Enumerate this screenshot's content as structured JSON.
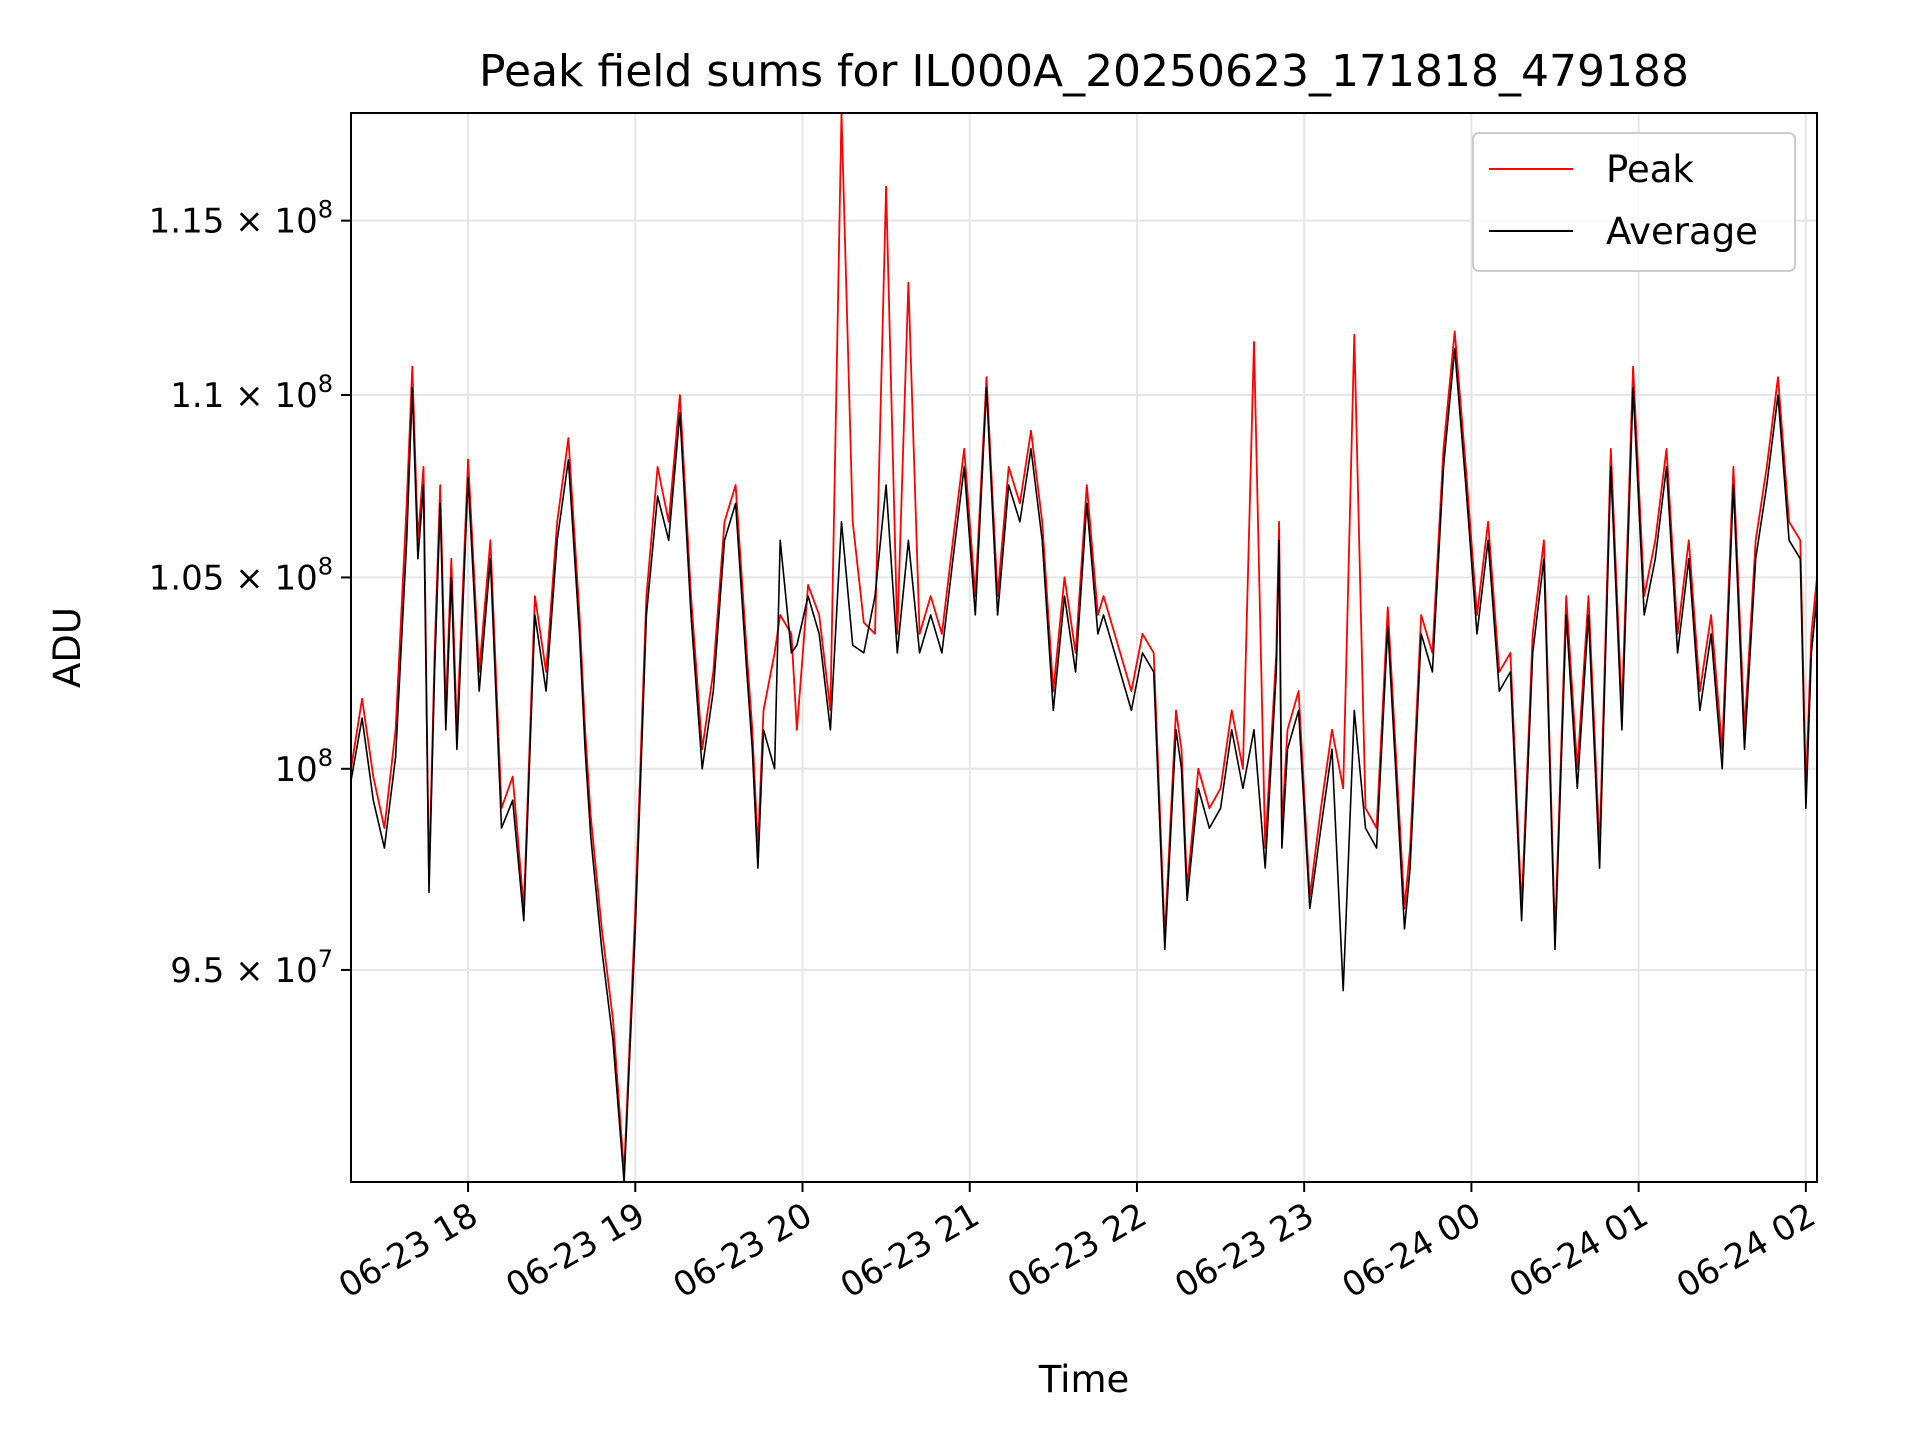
{
  "chart_data": {
    "type": "line",
    "title": "Peak field sums for IL000A_20250623_171818_479188",
    "xlabel": "Time",
    "ylabel": "ADU",
    "y_scale": "log",
    "x_range": [
      "2025-06-23 17:18",
      "2025-06-24 02:04"
    ],
    "ylim": [
      90000000,
      118200000
    ],
    "grid": true,
    "legend_position": "top-right",
    "x_ticks": [
      {
        "value": "2025-06-23 18:00",
        "label": "06-23 18"
      },
      {
        "value": "2025-06-23 19:00",
        "label": "06-23 19"
      },
      {
        "value": "2025-06-23 20:00",
        "label": "06-23 20"
      },
      {
        "value": "2025-06-23 21:00",
        "label": "06-23 21"
      },
      {
        "value": "2025-06-23 22:00",
        "label": "06-23 22"
      },
      {
        "value": "2025-06-23 23:00",
        "label": "06-23 23"
      },
      {
        "value": "2025-06-24 00:00",
        "label": "06-24 00"
      },
      {
        "value": "2025-06-24 01:00",
        "label": "06-24 01"
      },
      {
        "value": "2025-06-24 02:00",
        "label": "06-24 02"
      }
    ],
    "y_ticks": [
      {
        "value": 95000000,
        "mantissa": "9.5",
        "exponent": "7"
      },
      {
        "value": 100000000,
        "mantissa": "",
        "exponent": "8"
      },
      {
        "value": 105000000,
        "mantissa": "1.05",
        "exponent": "8"
      },
      {
        "value": 110000000,
        "mantissa": "1.1",
        "exponent": "8"
      },
      {
        "value": 115000000,
        "mantissa": "1.15",
        "exponent": "8"
      }
    ],
    "series": [
      {
        "name": "Peak",
        "color": "#ff0000",
        "x": [
          "2025-06-23 17:18",
          "2025-06-23 17:22",
          "2025-06-23 17:26",
          "2025-06-23 17:30",
          "2025-06-23 17:34",
          "2025-06-23 17:38",
          "2025-06-23 17:40",
          "2025-06-23 17:42",
          "2025-06-23 17:44",
          "2025-06-23 17:46",
          "2025-06-23 17:48",
          "2025-06-23 17:50",
          "2025-06-23 17:52",
          "2025-06-23 17:54",
          "2025-06-23 17:56",
          "2025-06-23 17:58",
          "2025-06-23 18:00",
          "2025-06-23 18:04",
          "2025-06-23 18:08",
          "2025-06-23 18:12",
          "2025-06-23 18:16",
          "2025-06-23 18:20",
          "2025-06-23 18:24",
          "2025-06-23 18:28",
          "2025-06-23 18:32",
          "2025-06-23 18:36",
          "2025-06-23 18:40",
          "2025-06-23 18:42",
          "2025-06-23 18:44",
          "2025-06-23 18:48",
          "2025-06-23 18:52",
          "2025-06-23 18:56",
          "2025-06-23 19:00",
          "2025-06-23 19:04",
          "2025-06-23 19:08",
          "2025-06-23 19:12",
          "2025-06-23 19:16",
          "2025-06-23 19:20",
          "2025-06-23 19:24",
          "2025-06-23 19:28",
          "2025-06-23 19:32",
          "2025-06-23 19:36",
          "2025-06-23 19:40",
          "2025-06-23 19:42",
          "2025-06-23 19:44",
          "2025-06-23 19:46",
          "2025-06-23 19:50",
          "2025-06-23 19:52",
          "2025-06-23 19:56",
          "2025-06-23 19:58",
          "2025-06-23 20:02",
          "2025-06-23 20:06",
          "2025-06-23 20:10",
          "2025-06-23 20:14",
          "2025-06-23 20:18",
          "2025-06-23 20:22",
          "2025-06-23 20:26",
          "2025-06-23 20:30",
          "2025-06-23 20:34",
          "2025-06-23 20:38",
          "2025-06-23 20:42",
          "2025-06-23 20:46",
          "2025-06-23 20:50",
          "2025-06-23 20:54",
          "2025-06-23 20:58",
          "2025-06-23 21:02",
          "2025-06-23 21:06",
          "2025-06-23 21:10",
          "2025-06-23 21:14",
          "2025-06-23 21:18",
          "2025-06-23 21:22",
          "2025-06-23 21:26",
          "2025-06-23 21:30",
          "2025-06-23 21:34",
          "2025-06-23 21:38",
          "2025-06-23 21:42",
          "2025-06-23 21:46",
          "2025-06-23 21:48",
          "2025-06-23 21:50",
          "2025-06-23 21:54",
          "2025-06-23 21:58",
          "2025-06-23 22:02",
          "2025-06-23 22:06",
          "2025-06-23 22:10",
          "2025-06-23 22:14",
          "2025-06-23 22:16",
          "2025-06-23 22:18",
          "2025-06-23 22:22",
          "2025-06-23 22:26",
          "2025-06-23 22:30",
          "2025-06-23 22:34",
          "2025-06-23 22:38",
          "2025-06-23 22:42",
          "2025-06-23 22:46",
          "2025-06-23 22:50",
          "2025-06-23 22:51",
          "2025-06-23 22:52",
          "2025-06-23 22:54",
          "2025-06-23 22:58",
          "2025-06-23 23:02",
          "2025-06-23 23:06",
          "2025-06-23 23:10",
          "2025-06-23 23:14",
          "2025-06-23 23:18",
          "2025-06-23 23:22",
          "2025-06-23 23:26",
          "2025-06-23 23:30",
          "2025-06-23 23:34",
          "2025-06-23 23:36",
          "2025-06-23 23:38",
          "2025-06-23 23:42",
          "2025-06-23 23:46",
          "2025-06-23 23:50",
          "2025-06-23 23:54",
          "2025-06-23 23:58",
          "2025-06-24 00:02",
          "2025-06-24 00:06",
          "2025-06-24 00:10",
          "2025-06-24 00:14",
          "2025-06-24 00:18",
          "2025-06-24 00:22",
          "2025-06-24 00:26",
          "2025-06-24 00:30",
          "2025-06-24 00:34",
          "2025-06-24 00:38",
          "2025-06-24 00:42",
          "2025-06-24 00:46",
          "2025-06-24 00:50",
          "2025-06-24 00:54",
          "2025-06-24 00:58",
          "2025-06-24 01:02",
          "2025-06-24 01:06",
          "2025-06-24 01:10",
          "2025-06-24 01:14",
          "2025-06-24 01:18",
          "2025-06-24 01:22",
          "2025-06-24 01:26",
          "2025-06-24 01:30",
          "2025-06-24 01:34",
          "2025-06-24 01:38",
          "2025-06-24 01:42",
          "2025-06-24 01:46",
          "2025-06-24 01:50",
          "2025-06-24 01:54",
          "2025-06-24 01:58",
          "2025-06-24 02:00",
          "2025-06-24 02:02",
          "2025-06-24 02:04"
        ],
        "y": [
          100000000,
          101800000,
          99800000,
          98500000,
          101000000,
          107000000,
          110800000,
          106000000,
          108000000,
          97200000,
          103000000,
          107500000,
          101500000,
          105500000,
          101000000,
          104500000,
          108200000,
          102500000,
          106000000,
          99000000,
          99800000,
          96500000,
          104500000,
          102500000,
          106500000,
          108800000,
          104000000,
          101000000,
          98800000,
          96000000,
          93800000,
          90200000,
          96500000,
          104500000,
          108000000,
          106500000,
          110000000,
          104500000,
          100500000,
          102500000,
          106500000,
          107500000,
          103000000,
          101000000,
          98000000,
          101500000,
          103000000,
          104000000,
          103500000,
          101000000,
          104800000,
          104000000,
          101500000,
          118200000,
          106500000,
          103800000,
          103500000,
          116000000,
          103500000,
          113200000,
          103500000,
          104500000,
          103500000,
          106000000,
          108500000,
          104500000,
          110500000,
          104500000,
          108000000,
          107000000,
          109000000,
          106500000,
          102000000,
          105000000,
          103000000,
          107500000,
          104000000,
          104500000,
          104000000,
          103000000,
          102000000,
          103500000,
          103000000,
          95800000,
          101500000,
          100500000,
          97000000,
          100000000,
          99000000,
          99500000,
          101500000,
          100000000,
          111500000,
          98000000,
          103000000,
          106500000,
          98500000,
          101000000,
          102000000,
          96800000,
          99000000,
          101000000,
          99500000,
          111700000,
          99000000,
          98500000,
          104200000,
          99000000,
          96500000,
          98000000,
          104000000,
          103000000,
          108500000,
          111800000,
          108000000,
          104000000,
          106500000,
          102500000,
          103000000,
          96500000,
          103500000,
          106000000,
          95800000,
          104500000,
          100000000,
          104500000,
          98000000,
          108500000,
          101500000,
          110800000,
          104500000,
          106000000,
          108500000,
          103500000,
          106000000,
          102000000,
          104000000,
          100500000,
          108000000,
          101000000,
          106000000,
          108000000,
          110500000,
          106500000,
          106000000,
          99500000,
          103500000,
          105000000
        ]
      },
      {
        "name": "Average",
        "color": "#000000",
        "x": [
          "2025-06-23 17:18",
          "2025-06-23 17:22",
          "2025-06-23 17:26",
          "2025-06-23 17:30",
          "2025-06-23 17:34",
          "2025-06-23 17:38",
          "2025-06-23 17:40",
          "2025-06-23 17:42",
          "2025-06-23 17:44",
          "2025-06-23 17:46",
          "2025-06-23 17:48",
          "2025-06-23 17:50",
          "2025-06-23 17:52",
          "2025-06-23 17:54",
          "2025-06-23 17:56",
          "2025-06-23 17:58",
          "2025-06-23 18:00",
          "2025-06-23 18:04",
          "2025-06-23 18:08",
          "2025-06-23 18:12",
          "2025-06-23 18:16",
          "2025-06-23 18:20",
          "2025-06-23 18:24",
          "2025-06-23 18:28",
          "2025-06-23 18:32",
          "2025-06-23 18:36",
          "2025-06-23 18:40",
          "2025-06-23 18:42",
          "2025-06-23 18:44",
          "2025-06-23 18:48",
          "2025-06-23 18:52",
          "2025-06-23 18:56",
          "2025-06-23 19:00",
          "2025-06-23 19:04",
          "2025-06-23 19:08",
          "2025-06-23 19:12",
          "2025-06-23 19:16",
          "2025-06-23 19:20",
          "2025-06-23 19:24",
          "2025-06-23 19:28",
          "2025-06-23 19:32",
          "2025-06-23 19:36",
          "2025-06-23 19:40",
          "2025-06-23 19:42",
          "2025-06-23 19:44",
          "2025-06-23 19:46",
          "2025-06-23 19:50",
          "2025-06-23 19:52",
          "2025-06-23 19:56",
          "2025-06-23 19:58",
          "2025-06-23 20:02",
          "2025-06-23 20:06",
          "2025-06-23 20:10",
          "2025-06-23 20:14",
          "2025-06-23 20:18",
          "2025-06-23 20:22",
          "2025-06-23 20:26",
          "2025-06-23 20:30",
          "2025-06-23 20:34",
          "2025-06-23 20:38",
          "2025-06-23 20:42",
          "2025-06-23 20:46",
          "2025-06-23 20:50",
          "2025-06-23 20:54",
          "2025-06-23 20:58",
          "2025-06-23 21:02",
          "2025-06-23 21:06",
          "2025-06-23 21:10",
          "2025-06-23 21:14",
          "2025-06-23 21:18",
          "2025-06-23 21:22",
          "2025-06-23 21:26",
          "2025-06-23 21:30",
          "2025-06-23 21:34",
          "2025-06-23 21:38",
          "2025-06-23 21:42",
          "2025-06-23 21:46",
          "2025-06-23 21:48",
          "2025-06-23 21:50",
          "2025-06-23 21:54",
          "2025-06-23 21:58",
          "2025-06-23 22:02",
          "2025-06-23 22:06",
          "2025-06-23 22:10",
          "2025-06-23 22:14",
          "2025-06-23 22:16",
          "2025-06-23 22:18",
          "2025-06-23 22:22",
          "2025-06-23 22:26",
          "2025-06-23 22:30",
          "2025-06-23 22:34",
          "2025-06-23 22:38",
          "2025-06-23 22:42",
          "2025-06-23 22:46",
          "2025-06-23 22:50",
          "2025-06-23 22:51",
          "2025-06-23 22:52",
          "2025-06-23 22:54",
          "2025-06-23 22:58",
          "2025-06-23 23:02",
          "2025-06-23 23:06",
          "2025-06-23 23:10",
          "2025-06-23 23:14",
          "2025-06-23 23:18",
          "2025-06-23 23:22",
          "2025-06-23 23:26",
          "2025-06-23 23:30",
          "2025-06-23 23:34",
          "2025-06-23 23:36",
          "2025-06-23 23:38",
          "2025-06-23 23:42",
          "2025-06-23 23:46",
          "2025-06-23 23:50",
          "2025-06-23 23:54",
          "2025-06-23 23:58",
          "2025-06-24 00:02",
          "2025-06-24 00:06",
          "2025-06-24 00:10",
          "2025-06-24 00:14",
          "2025-06-24 00:18",
          "2025-06-24 00:22",
          "2025-06-24 00:26",
          "2025-06-24 00:30",
          "2025-06-24 00:34",
          "2025-06-24 00:38",
          "2025-06-24 00:42",
          "2025-06-24 00:46",
          "2025-06-24 00:50",
          "2025-06-24 00:54",
          "2025-06-24 00:58",
          "2025-06-24 01:02",
          "2025-06-24 01:06",
          "2025-06-24 01:10",
          "2025-06-24 01:14",
          "2025-06-24 01:18",
          "2025-06-24 01:22",
          "2025-06-24 01:26",
          "2025-06-24 01:30",
          "2025-06-24 01:34",
          "2025-06-24 01:38",
          "2025-06-24 01:42",
          "2025-06-24 01:46",
          "2025-06-24 01:50",
          "2025-06-24 01:54",
          "2025-06-24 01:58",
          "2025-06-24 02:00",
          "2025-06-24 02:02",
          "2025-06-24 02:04"
        ],
        "y": [
          99700000,
          101300000,
          99200000,
          98000000,
          100300000,
          106000000,
          110200000,
          105500000,
          107500000,
          96900000,
          102500000,
          107000000,
          101000000,
          105000000,
          100500000,
          104000000,
          107700000,
          102000000,
          105500000,
          98500000,
          99200000,
          96200000,
          104000000,
          102000000,
          106000000,
          108200000,
          103500000,
          100500000,
          98300000,
          95500000,
          93300000,
          90000000,
          96000000,
          104000000,
          107200000,
          106000000,
          109500000,
          104000000,
          100000000,
          102000000,
          106000000,
          107000000,
          102500000,
          100500000,
          97500000,
          101000000,
          100000000,
          106000000,
          103000000,
          103200000,
          104500000,
          103500000,
          101000000,
          106500000,
          103200000,
          103000000,
          104500000,
          107500000,
          103000000,
          106000000,
          103000000,
          104000000,
          103000000,
          105500000,
          108000000,
          104000000,
          110200000,
          104000000,
          107500000,
          106500000,
          108500000,
          106000000,
          101500000,
          104500000,
          102500000,
          107000000,
          103500000,
          104000000,
          103500000,
          102500000,
          101500000,
          103000000,
          102500000,
          95500000,
          101000000,
          100000000,
          96700000,
          99500000,
          98500000,
          99000000,
          101000000,
          99500000,
          101000000,
          97500000,
          102500000,
          106000000,
          98000000,
          100500000,
          101500000,
          96500000,
          98500000,
          100500000,
          94500000,
          101500000,
          98500000,
          98000000,
          103700000,
          98500000,
          96000000,
          97500000,
          103500000,
          102500000,
          108000000,
          111300000,
          107500000,
          103500000,
          106000000,
          102000000,
          102500000,
          96200000,
          103000000,
          105500000,
          95500000,
          104000000,
          99500000,
          104000000,
          97500000,
          108000000,
          101000000,
          110200000,
          104000000,
          105500000,
          108000000,
          103000000,
          105500000,
          101500000,
          103500000,
          100000000,
          107500000,
          100500000,
          105500000,
          107500000,
          110000000,
          106000000,
          105500000,
          99000000,
          103000000,
          104500000
        ]
      }
    ]
  }
}
